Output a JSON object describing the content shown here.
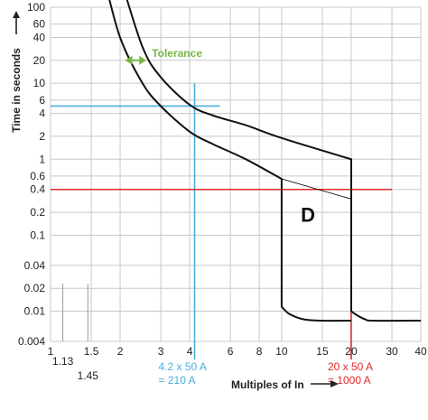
{
  "chart_data": {
    "type": "line",
    "ylabel": "Time in seconds",
    "xlabel": "Multiples of In",
    "x_scale": "log",
    "y_scale": "log",
    "xlim": [
      1,
      40
    ],
    "ylim": [
      0.004,
      100
    ],
    "grid": true,
    "y_ticks": [
      {
        "value": 100,
        "label": "100"
      },
      {
        "value": 60,
        "label": "60"
      },
      {
        "value": 40,
        "label": "40"
      },
      {
        "value": 20,
        "label": "20"
      },
      {
        "value": 10,
        "label": "10"
      },
      {
        "value": 6,
        "label": "6"
      },
      {
        "value": 4,
        "label": "4"
      },
      {
        "value": 2,
        "label": "2"
      },
      {
        "value": 1,
        "label": "1"
      },
      {
        "value": 0.6,
        "label": "0.6"
      },
      {
        "value": 0.4,
        "label": "0.4"
      },
      {
        "value": 0.2,
        "label": "0.2"
      },
      {
        "value": 0.1,
        "label": "0.1"
      },
      {
        "value": 0.04,
        "label": "0.04"
      },
      {
        "value": 0.02,
        "label": "0.02"
      },
      {
        "value": 0.01,
        "label": "0.01"
      },
      {
        "value": 0.004,
        "label": "0.004"
      }
    ],
    "x_ticks": [
      {
        "value": 1,
        "label": "1"
      },
      {
        "value": 1.5,
        "label": "1.5"
      },
      {
        "value": 2,
        "label": "2"
      },
      {
        "value": 3,
        "label": "3"
      },
      {
        "value": 4,
        "label": "4"
      },
      {
        "value": 6,
        "label": "6"
      },
      {
        "value": 8,
        "label": "8"
      },
      {
        "value": 10,
        "label": "10"
      },
      {
        "value": 15,
        "label": "15"
      },
      {
        "value": 20,
        "label": "20"
      },
      {
        "value": 30,
        "label": "30"
      },
      {
        "value": 40,
        "label": "40"
      }
    ],
    "x_markers": [
      {
        "value": 1.13,
        "label": "1.13"
      },
      {
        "value": 1.45,
        "label": "1.45"
      }
    ],
    "series": [
      {
        "color": "#111111",
        "points": [
          [
            2.0,
            250
          ],
          [
            2.5,
            30
          ],
          [
            3.0,
            12
          ],
          [
            4.0,
            5.2
          ],
          [
            5.0,
            3.8
          ],
          [
            7.0,
            2.8
          ],
          [
            10.0,
            1.9
          ],
          [
            20.0,
            1.0
          ],
          [
            20.0,
            0.01
          ],
          [
            21,
            0.009
          ],
          [
            23,
            0.0078
          ],
          [
            25,
            0.0075
          ],
          [
            40,
            0.0075
          ]
        ]
      },
      {
        "color": "#111111",
        "points": [
          [
            1.7,
            250
          ],
          [
            2.0,
            40
          ],
          [
            2.5,
            10
          ],
          [
            3.0,
            5.0
          ],
          [
            4.0,
            2.3
          ],
          [
            5.0,
            1.6
          ],
          [
            7.0,
            1.0
          ],
          [
            10.0,
            0.55
          ],
          [
            10.0,
            0.0115
          ],
          [
            10.8,
            0.0092
          ],
          [
            12.5,
            0.0078
          ],
          [
            15,
            0.0075
          ],
          [
            20,
            0.0075
          ]
        ]
      },
      {
        "color": "#111111",
        "points": [
          [
            10.0,
            0.55
          ],
          [
            20.0,
            0.3
          ]
        ]
      }
    ],
    "reference_lines": [
      {
        "orientation": "horizontal",
        "y": 5,
        "x_range": [
          1,
          5.4
        ],
        "color": "#4aaee0"
      },
      {
        "orientation": "vertical",
        "x": 4.2,
        "y_range": [
          0.004,
          10
        ],
        "color": "#4aaee0"
      },
      {
        "orientation": "horizontal",
        "y": 0.4,
        "x_range": [
          1,
          30
        ],
        "color": "#e0282a"
      },
      {
        "orientation": "vertical",
        "x": 20,
        "y_range": [
          0.004,
          0.5
        ],
        "color": "#e0282a"
      }
    ],
    "annotations": [
      {
        "text": "Tolerance",
        "x": 4.0,
        "y": 20,
        "color": "#7ab648"
      },
      {
        "text": "D",
        "x": 13,
        "y": 0.15,
        "color": "#111111"
      },
      {
        "text": "4.2 x 50 A",
        "color": "#4aaee0"
      },
      {
        "text": "= 210 A",
        "color": "#4aaee0"
      },
      {
        "text": "20 x 50 A",
        "color": "#e0282a"
      },
      {
        "text": "= 1000 A",
        "color": "#e0282a"
      }
    ],
    "tolerance_arrow": {
      "x_from": 2.1,
      "x_to": 2.6,
      "y": 20,
      "color": "#7ab648"
    }
  }
}
